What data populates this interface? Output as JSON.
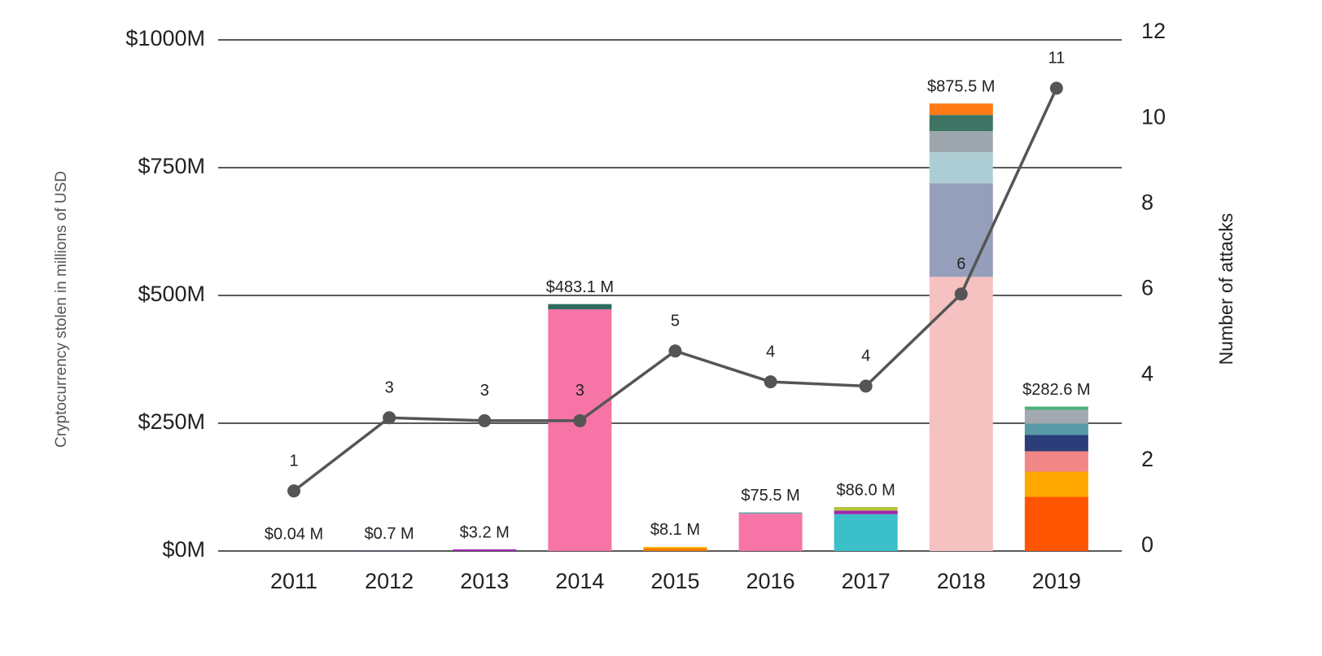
{
  "chart_data": {
    "type": "bar",
    "categories": [
      "2011",
      "2012",
      "2013",
      "2014",
      "2015",
      "2016",
      "2017",
      "2018",
      "2019"
    ],
    "stacks": [
      [
        {
          "value": 0.04,
          "color": "#7b1fa2"
        }
      ],
      [
        {
          "value": 0.7,
          "color": "#1a237e"
        }
      ],
      [
        {
          "value": 3.2,
          "color": "#9c27b0"
        }
      ],
      [
        {
          "value": 473,
          "color": "#f774a6"
        },
        {
          "value": 10.1,
          "color": "#2e6b5e"
        }
      ],
      [
        {
          "value": 5.5,
          "color": "#f57c00"
        },
        {
          "value": 2.6,
          "color": "#ffc107"
        }
      ],
      [
        {
          "value": 73,
          "color": "#f774a6"
        },
        {
          "value": 2.5,
          "color": "#5f9ea0"
        }
      ],
      [
        {
          "value": 72,
          "color": "#3bbfc9"
        },
        {
          "value": 7,
          "color": "#9c27b0"
        },
        {
          "value": 7,
          "color": "#b5c23a"
        }
      ],
      [
        {
          "value": 536.5,
          "color": "#f6c1c1"
        },
        {
          "value": 183,
          "color": "#959fbb"
        },
        {
          "value": 60.5,
          "color": "#adcdd4"
        },
        {
          "value": 41.4,
          "color": "#9ea6ad"
        },
        {
          "value": 31.8,
          "color": "#3d7464"
        },
        {
          "value": 22.3,
          "color": "#ff7a14"
        }
      ],
      [
        {
          "value": 105.9,
          "color": "#ff5500"
        },
        {
          "value": 49.4,
          "color": "#ffa800"
        },
        {
          "value": 39.8,
          "color": "#f28585"
        },
        {
          "value": 31.8,
          "color": "#2c3e7a"
        },
        {
          "value": 22.3,
          "color": "#5a9aa8"
        },
        {
          "value": 27,
          "color": "#a2a9b0"
        },
        {
          "value": 6.4,
          "color": "#4caf7d"
        }
      ]
    ],
    "totals": [
      0.04,
      0.7,
      3.2,
      483.1,
      8.1,
      75.5,
      86.0,
      875.5,
      282.6
    ],
    "total_labels": [
      "$0.04 M",
      "$0.7 M",
      "$3.2 M",
      "$483.1 M",
      "$8.1 M",
      "$75.5 M",
      "$86.0 M",
      "$875.5 M",
      "$282.6 M"
    ],
    "line": {
      "type": "line",
      "axis": "y2",
      "color": "#555555",
      "values": [
        1.29,
        3.0,
        2.93,
        2.93,
        4.56,
        3.84,
        3.74,
        5.89,
        10.7
      ],
      "value_labels": [
        "1",
        "3",
        "3",
        "3",
        "5",
        "4",
        "4",
        "6",
        "11"
      ]
    },
    "ylabel": "Cryptocurrency stolen in millions of USD",
    "y2label": "Number of attacks",
    "ylim": [
      0,
      1000
    ],
    "yticks": [
      {
        "value": 0,
        "label": "$0M"
      },
      {
        "value": 250,
        "label": "$250M"
      },
      {
        "value": 500,
        "label": "$500M"
      },
      {
        "value": 750,
        "label": "$750M"
      },
      {
        "value": 1000,
        "label": "$1000M"
      }
    ],
    "y2lim": [
      0,
      12
    ],
    "y2ticks": [
      0,
      2,
      4,
      6,
      8,
      10,
      12
    ],
    "grid": true
  }
}
